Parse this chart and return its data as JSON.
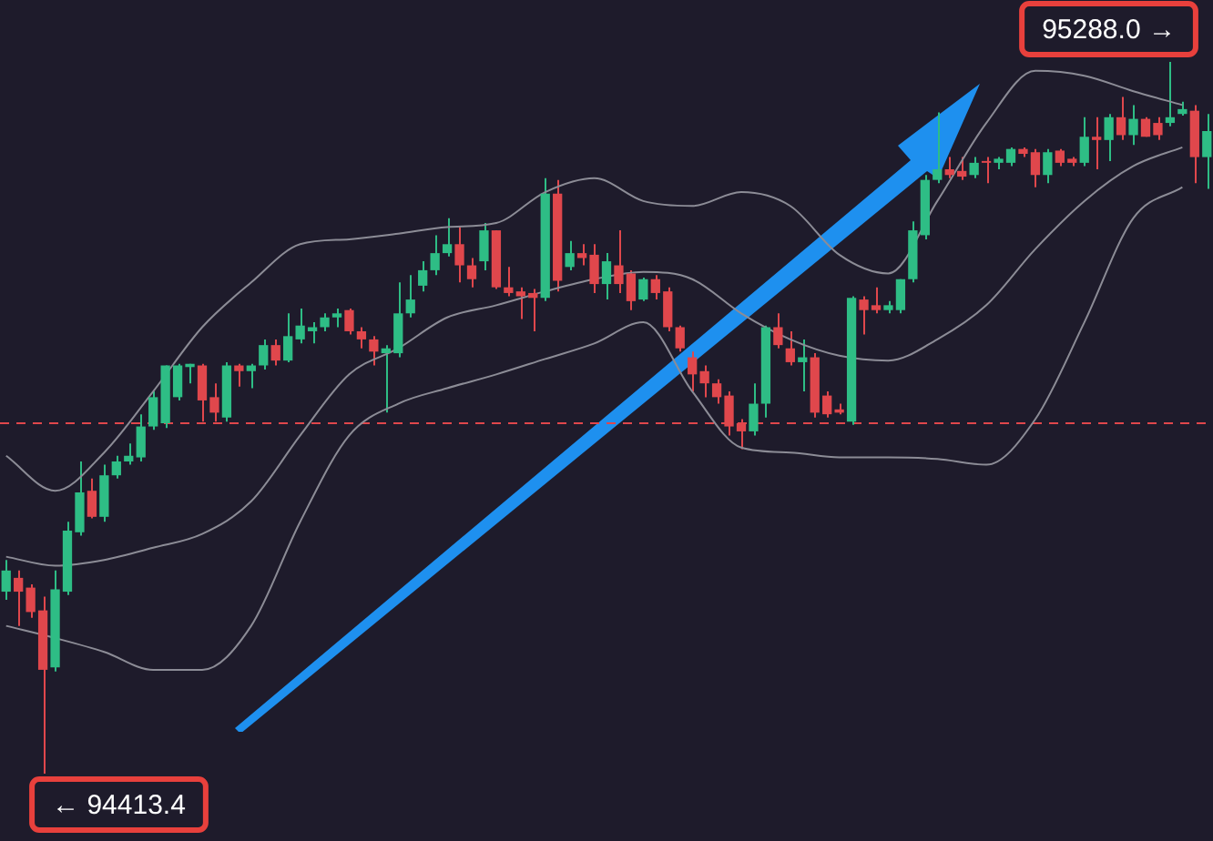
{
  "chart_data": {
    "type": "candlestick",
    "categories": [
      null,
      null,
      null,
      null,
      null,
      null,
      null,
      null,
      null,
      null,
      null,
      null,
      null,
      null,
      null,
      null,
      null,
      null,
      null,
      null,
      null,
      null,
      null,
      null,
      null,
      null,
      null,
      null,
      null,
      null,
      null,
      null,
      null,
      null,
      null,
      null,
      null,
      null,
      null,
      null,
      null,
      null,
      null,
      null,
      null,
      null,
      null,
      null,
      null,
      null,
      null,
      null,
      null,
      null,
      null,
      null,
      null,
      null,
      null,
      null,
      null,
      null,
      null,
      null,
      null,
      null,
      null,
      null,
      null,
      null,
      null,
      null,
      null,
      null,
      null,
      null,
      null,
      null,
      null,
      null,
      null,
      null,
      null,
      null,
      null,
      null,
      null,
      null,
      null,
      null,
      null,
      null,
      null,
      null,
      null,
      null,
      null,
      null,
      null
    ],
    "ohlc": [
      [
        94637,
        94676,
        94627,
        94663
      ],
      [
        94654,
        94663,
        94595,
        94637
      ],
      [
        94642,
        94646,
        94605,
        94612
      ],
      [
        94614,
        94631,
        94413.4,
        94541
      ],
      [
        94544,
        94663,
        94539,
        94640
      ],
      [
        94637,
        94723,
        94633,
        94712
      ],
      [
        94710,
        94797,
        94706,
        94759
      ],
      [
        94761,
        94776,
        94727,
        94729
      ],
      [
        94729,
        94793,
        94723,
        94780
      ],
      [
        94780,
        94804,
        94776,
        94797
      ],
      [
        94797,
        94819,
        94793,
        94804
      ],
      [
        94802,
        94855,
        94797,
        94840
      ],
      [
        94840,
        94883,
        94836,
        94876
      ],
      [
        94844,
        94915,
        94838,
        94915
      ],
      [
        94876,
        94917,
        94872,
        94915
      ],
      [
        94913,
        94917,
        94893,
        94917
      ],
      [
        94915,
        94917,
        94846,
        94872
      ],
      [
        94876,
        94893,
        94846,
        94857
      ],
      [
        94851,
        94919,
        94846,
        94915
      ],
      [
        94915,
        94917,
        94889,
        94908
      ],
      [
        94908,
        94917,
        94887,
        94915
      ],
      [
        94915,
        94947,
        94910,
        94940
      ],
      [
        94940,
        94947,
        94915,
        94921
      ],
      [
        94921,
        94979,
        94919,
        94951
      ],
      [
        94947,
        94985,
        94942,
        94964
      ],
      [
        94957,
        94968,
        94942,
        94962
      ],
      [
        94962,
        94979,
        94957,
        94974
      ],
      [
        94974,
        94985,
        94962,
        94979
      ],
      [
        94983,
        94985,
        94953,
        94957
      ],
      [
        94957,
        94962,
        94936,
        94947
      ],
      [
        94947,
        94951,
        94915,
        94932
      ],
      [
        94930,
        94940,
        94857,
        94936
      ],
      [
        94930,
        95017,
        94925,
        94979
      ],
      [
        94979,
        95026,
        94974,
        94996
      ],
      [
        95013,
        95043,
        95006,
        95032
      ],
      [
        95032,
        95075,
        95026,
        95053
      ],
      [
        95053,
        95096,
        95049,
        95064
      ],
      [
        95064,
        95085,
        95017,
        95038
      ],
      [
        95038,
        95047,
        95011,
        95021
      ],
      [
        95043,
        95090,
        95032,
        95081
      ],
      [
        95081,
        95081,
        95009,
        95011
      ],
      [
        95011,
        95036,
        95000,
        95004
      ],
      [
        95006,
        95011,
        94972,
        95000
      ],
      [
        95004,
        95009,
        94957,
        94998
      ],
      [
        94998,
        95145,
        94994,
        95126
      ],
      [
        95126,
        95143,
        95006,
        95019
      ],
      [
        95036,
        95068,
        95032,
        95053
      ],
      [
        95053,
        95064,
        95038,
        95047
      ],
      [
        95051,
        95064,
        95004,
        95015
      ],
      [
        95015,
        95053,
        94996,
        95043
      ],
      [
        95038,
        95081,
        95004,
        95015
      ],
      [
        95028,
        95032,
        94983,
        94994
      ],
      [
        94996,
        95023,
        94994,
        95021
      ],
      [
        95021,
        95026,
        94996,
        95004
      ],
      [
        95006,
        95011,
        94957,
        94962
      ],
      [
        94962,
        94964,
        94932,
        94936
      ],
      [
        94925,
        94932,
        94883,
        94904
      ],
      [
        94908,
        94915,
        94876,
        94893
      ],
      [
        94893,
        94898,
        94868,
        94876
      ],
      [
        94878,
        94883,
        94829,
        94840
      ],
      [
        94844,
        94849,
        94812,
        94834
      ],
      [
        94834,
        94893,
        94829,
        94868
      ],
      [
        94868,
        94964,
        94851,
        94962
      ],
      [
        94962,
        94979,
        94936,
        94940
      ],
      [
        94936,
        94957,
        94915,
        94919
      ],
      [
        94919,
        94947,
        94883,
        94925
      ],
      [
        94925,
        94930,
        94851,
        94857
      ],
      [
        94878,
        94883,
        94851,
        94855
      ],
      [
        94861,
        94868,
        94855,
        94857
      ],
      [
        94846,
        95000,
        94842,
        94998
      ],
      [
        94996,
        95000,
        94953,
        94983
      ],
      [
        94989,
        95011,
        94979,
        94983
      ],
      [
        94983,
        94994,
        94979,
        94989
      ],
      [
        94983,
        95021,
        94979,
        95021
      ],
      [
        95021,
        95092,
        95017,
        95081
      ],
      [
        95075,
        95149,
        95070,
        95143
      ],
      [
        95143,
        95226,
        95139,
        95156
      ],
      [
        95156,
        95171,
        95145,
        95149
      ],
      [
        95154,
        95171,
        95143,
        95147
      ],
      [
        95149,
        95171,
        95145,
        95164
      ],
      [
        95166,
        95171,
        95139,
        95164
      ],
      [
        95164,
        95171,
        95156,
        95169
      ],
      [
        95164,
        95183,
        95160,
        95181
      ],
      [
        95181,
        95183,
        95171,
        95175
      ],
      [
        95177,
        95181,
        95134,
        95149
      ],
      [
        95149,
        95181,
        95139,
        95177
      ],
      [
        95179,
        95181,
        95160,
        95164
      ],
      [
        95169,
        95171,
        95160,
        95164
      ],
      [
        95164,
        95220,
        95160,
        95196
      ],
      [
        95196,
        95220,
        95156,
        95192
      ],
      [
        95192,
        95224,
        95166,
        95220
      ],
      [
        95220,
        95245,
        95192,
        95198
      ],
      [
        95198,
        95235,
        95186,
        95218
      ],
      [
        95218,
        95220,
        95196,
        95196
      ],
      [
        95213,
        95220,
        95192,
        95198
      ],
      [
        95213,
        95288.0,
        95209,
        95220
      ],
      [
        95224,
        95239,
        95222,
        95230
      ],
      [
        95228,
        95235,
        95139,
        95171
      ],
      [
        95171,
        95224,
        95132,
        95203
      ]
    ],
    "colors": [
      "#2ebd85",
      "#e0474c",
      "#e0474c",
      "#e0474c",
      "#2ebd85",
      "#2ebd85",
      "#2ebd85",
      "#e0474c",
      "#2ebd85",
      "#2ebd85",
      "#2ebd85",
      "#2ebd85",
      "#2ebd85",
      "#2ebd85",
      "#2ebd85",
      "#2ebd85",
      "#e0474c",
      "#e0474c",
      "#2ebd85",
      "#e0474c",
      "#2ebd85",
      "#2ebd85",
      "#e0474c",
      "#2ebd85",
      "#2ebd85",
      "#2ebd85",
      "#2ebd85",
      "#2ebd85",
      "#e0474c",
      "#e0474c",
      "#e0474c",
      "#2ebd85",
      "#2ebd85",
      "#2ebd85",
      "#2ebd85",
      "#2ebd85",
      "#2ebd85",
      "#e0474c",
      "#e0474c",
      "#2ebd85",
      "#e0474c",
      "#e0474c",
      "#e0474c",
      "#e0474c",
      "#2ebd85",
      "#e0474c",
      "#2ebd85",
      "#e0474c",
      "#e0474c",
      "#2ebd85",
      "#e0474c",
      "#e0474c",
      "#2ebd85",
      "#e0474c",
      "#e0474c",
      "#e0474c",
      "#e0474c",
      "#e0474c",
      "#e0474c",
      "#e0474c",
      "#e0474c",
      "#2ebd85",
      "#2ebd85",
      "#e0474c",
      "#e0474c",
      "#2ebd85",
      "#e0474c",
      "#e0474c",
      "#e0474c",
      "#2ebd85",
      "#e0474c",
      "#e0474c",
      "#2ebd85",
      "#2ebd85",
      "#2ebd85",
      "#2ebd85",
      "#2ebd85",
      "#e0474c",
      "#e0474c",
      "#2ebd85",
      "#e0474c",
      "#2ebd85",
      "#2ebd85",
      "#e0474c",
      "#e0474c",
      "#2ebd85",
      "#e0474c",
      "#e0474c",
      "#2ebd85",
      "#e0474c",
      "#2ebd85",
      "#e0474c",
      "#2ebd85",
      "#e0474c",
      "#e0474c",
      "#2ebd85",
      "#2ebd85",
      "#e0474c",
      "#2ebd85"
    ],
    "series": [
      {
        "type": "line",
        "color": "#8c8c96",
        "values": [
          94804,
          null,
          null,
          null,
          94761,
          null,
          null,
          null,
          94808,
          null,
          null,
          null,
          94883,
          null,
          null,
          null,
          94962,
          null,
          null,
          null,
          95017,
          null,
          null,
          null,
          95064,
          null,
          null,
          null,
          95070,
          null,
          null,
          null,
          95077,
          null,
          null,
          null,
          95085,
          null,
          null,
          null,
          95090,
          null,
          null,
          null,
          95128,
          null,
          null,
          null,
          95145,
          null,
          null,
          null,
          95117,
          null,
          null,
          null,
          95111,
          null,
          null,
          null,
          95128,
          null,
          null,
          null,
          95111,
          null,
          null,
          null,
          95051,
          null,
          null,
          null,
          95028,
          null,
          null,
          null,
          95117,
          null,
          null,
          null,
          95213,
          null,
          null,
          null,
          95277,
          null,
          null,
          null,
          95271,
          null,
          null,
          null,
          95252,
          null,
          null,
          null,
          95235,
          null,
          null
        ]
      },
      {
        "type": "line",
        "color": "#8c8c96",
        "values": [
          94680,
          null,
          null,
          null,
          94669,
          null,
          null,
          null,
          94676,
          null,
          null,
          null,
          94691,
          null,
          null,
          null,
          94708,
          null,
          null,
          null,
          94748,
          null,
          null,
          null,
          94829,
          null,
          null,
          null,
          94904,
          null,
          null,
          null,
          94936,
          null,
          null,
          null,
          94974,
          null,
          null,
          null,
          94989,
          null,
          null,
          null,
          95006,
          null,
          null,
          null,
          95021,
          null,
          null,
          null,
          95030,
          null,
          null,
          null,
          95021,
          null,
          null,
          null,
          94979,
          null,
          null,
          null,
          94947,
          null,
          null,
          null,
          94927,
          null,
          null,
          null,
          94921,
          null,
          null,
          null,
          94947,
          null,
          null,
          null,
          94989,
          null,
          null,
          null,
          95058,
          null,
          null,
          null,
          95117,
          null,
          null,
          null,
          95160,
          null,
          null,
          null,
          95183,
          null,
          null
        ]
      },
      {
        "type": "line",
        "color": "#8c8c96",
        "values": [
          94595,
          null,
          null,
          null,
          94580,
          null,
          null,
          null,
          94563,
          null,
          null,
          null,
          94541,
          null,
          null,
          null,
          94541,
          null,
          null,
          null,
          94595,
          null,
          null,
          null,
          94723,
          null,
          null,
          null,
          94829,
          null,
          null,
          null,
          94868,
          null,
          null,
          null,
          94887,
          null,
          null,
          null,
          94904,
          null,
          null,
          null,
          94923,
          null,
          null,
          null,
          94942,
          null,
          null,
          null,
          94968,
          null,
          null,
          null,
          94883,
          null,
          null,
          null,
          94814,
          null,
          null,
          null,
          94808,
          null,
          null,
          null,
          94802,
          null,
          null,
          null,
          94802,
          null,
          null,
          null,
          94800,
          null,
          null,
          null,
          94793,
          null,
          null,
          null,
          94849,
          null,
          null,
          null,
          94968,
          null,
          null,
          null,
          95096,
          null,
          null,
          null,
          95134,
          null,
          null
        ]
      }
    ],
    "ref_lines": [
      {
        "axis": "y",
        "value": 94844,
        "color": "#e0474c",
        "line_style": "dashed"
      }
    ],
    "annotations": [
      "95288.0 →",
      "← 94413.4"
    ],
    "legend": false
  }
}
